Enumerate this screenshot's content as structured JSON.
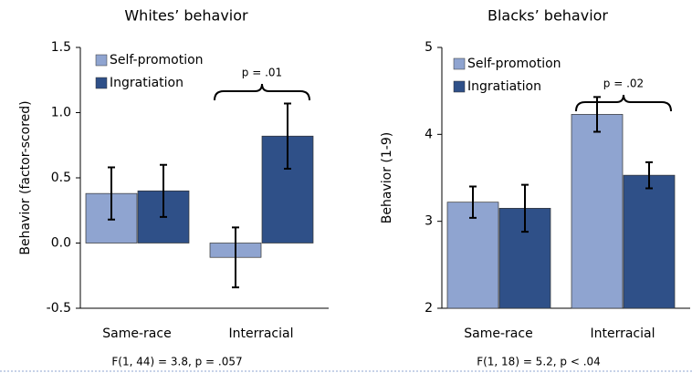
{
  "chart_data": [
    {
      "type": "bar",
      "title": "Whites’ behavior",
      "y_label": "Behavior (factor-scored)",
      "categories": [
        "Same-race",
        "Interracial"
      ],
      "series": [
        {
          "name": "Self-promotion",
          "color": "#8fa4d0",
          "values": [
            0.38,
            -0.11
          ],
          "errors": [
            0.2,
            0.23
          ]
        },
        {
          "name": "Ingratiation",
          "color": "#2f5088",
          "values": [
            0.4,
            0.82
          ],
          "errors": [
            0.2,
            0.25
          ]
        }
      ],
      "ylim": [
        -0.5,
        1.5
      ],
      "yticks": [
        -0.5,
        {
          "value": 0,
          "label": "0.0"
        },
        0.5,
        {
          "value": 1,
          "label": "1.0"
        },
        1.5
      ],
      "annotation": "p = .01",
      "footnote": "F(1, 44) = 3.8, p = .057"
    },
    {
      "type": "bar",
      "title": "Blacks’ behavior",
      "y_label": "Behavior (1-9)",
      "categories": [
        "Same-race",
        "Interracial"
      ],
      "series": [
        {
          "name": "Self-promotion",
          "color": "#8fa4d0",
          "values": [
            3.22,
            4.23
          ],
          "errors": [
            0.18,
            0.2
          ]
        },
        {
          "name": "Ingratiation",
          "color": "#2f5088",
          "values": [
            3.15,
            3.53
          ],
          "errors": [
            0.27,
            0.15
          ]
        }
      ],
      "ylim": [
        2,
        5
      ],
      "yticks": [
        2,
        3,
        4,
        5
      ],
      "annotation": "p = .02",
      "footnote": "F(1, 18) = 5.2, p < .04"
    }
  ]
}
